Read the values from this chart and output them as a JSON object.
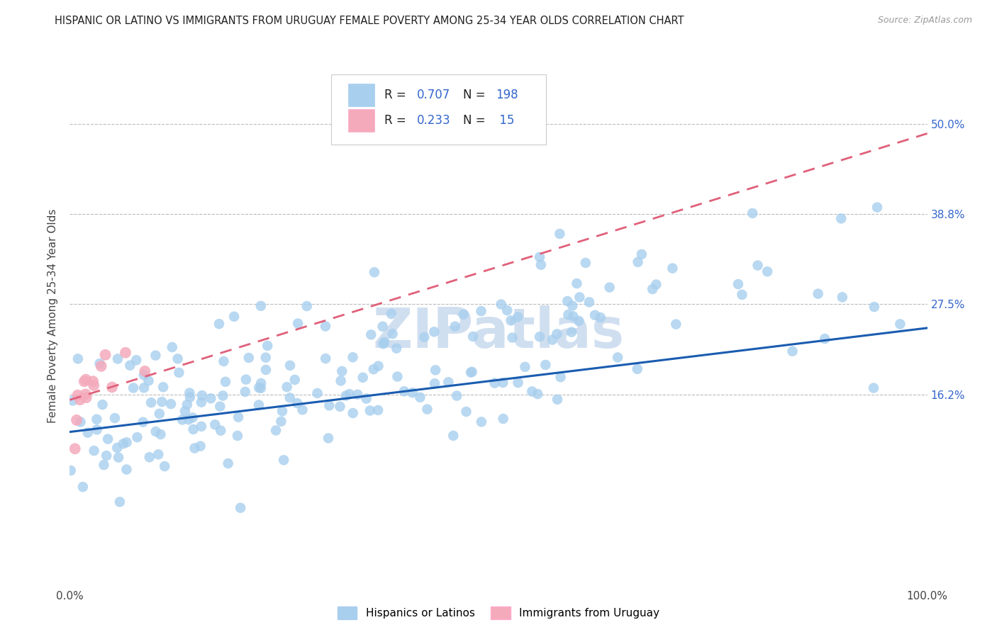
{
  "title": "HISPANIC OR LATINO VS IMMIGRANTS FROM URUGUAY FEMALE POVERTY AMONG 25-34 YEAR OLDS CORRELATION CHART",
  "source": "Source: ZipAtlas.com",
  "ylabel": "Female Poverty Among 25-34 Year Olds",
  "y_tick_labels": [
    "16.2%",
    "27.5%",
    "38.8%",
    "50.0%"
  ],
  "y_tick_values": [
    0.162,
    0.275,
    0.388,
    0.5
  ],
  "R_blue": 0.707,
  "N_blue": 198,
  "R_pink": 0.233,
  "N_pink": 15,
  "color_blue": "#A8CFEE",
  "color_pink": "#F4AABB",
  "color_blue_line": "#1A5CB0",
  "color_pink_line": "#E0607A",
  "watermark_color": "#D0DFF0",
  "background_color": "#ffffff",
  "title_fontsize": 10.5,
  "source_fontsize": 9,
  "label_fontsize": 11,
  "legend_fontsize": 12,
  "xlim": [
    0.0,
    1.0
  ],
  "ylim": [
    -0.08,
    0.6
  ],
  "blue_trend_start_y": 0.115,
  "blue_trend_end_y": 0.245,
  "pink_trend_start_x": 0.0,
  "pink_trend_start_y": 0.155,
  "pink_trend_end_x": 0.18,
  "pink_trend_end_y": 0.215
}
